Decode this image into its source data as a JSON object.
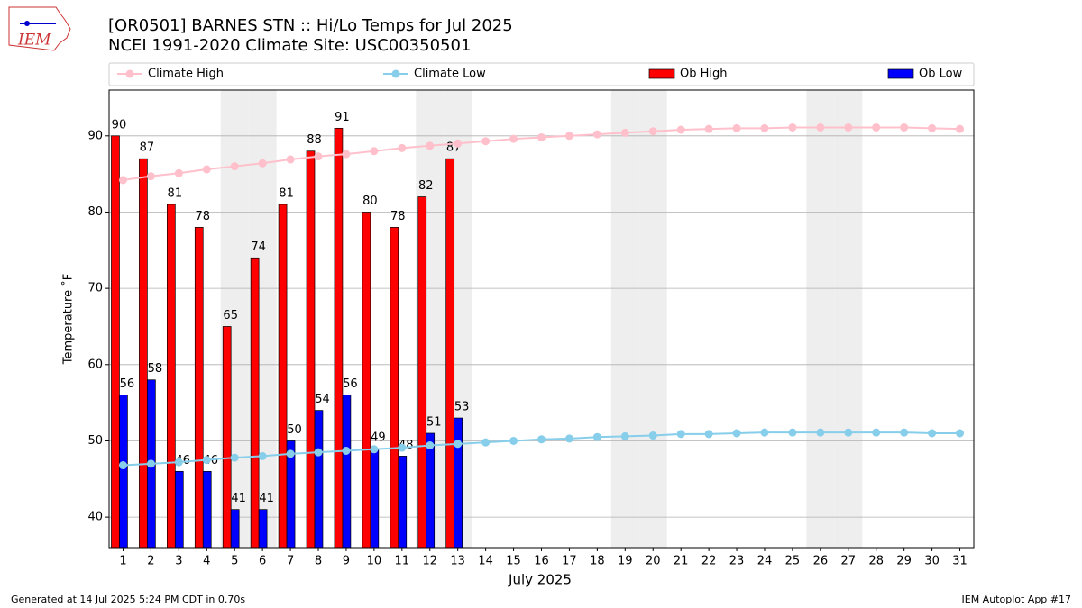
{
  "chart_data": {
    "type": "bar",
    "logo_text": "IEM",
    "title": "[OR0501] BARNES STN :: Hi/Lo Temps for Jul 2025",
    "subtitle": "NCEI 1991-2020 Climate Site: USC00350501",
    "x_label": "July 2025",
    "y_label": "Temperature ˚F",
    "footer_left": "Generated at 14 Jul 2025 5:24 PM CDT in 0.70s",
    "footer_right": "IEM Autoplot App #17",
    "x": [
      1,
      2,
      3,
      4,
      5,
      6,
      7,
      8,
      9,
      10,
      11,
      12,
      13,
      14,
      15,
      16,
      17,
      18,
      19,
      20,
      21,
      22,
      23,
      24,
      25,
      26,
      27,
      28,
      29,
      30,
      31
    ],
    "xlim": [
      0.5,
      31.5
    ],
    "ylim": [
      36,
      96
    ],
    "yticks": [
      40,
      50,
      60,
      70,
      80,
      90
    ],
    "grid": true,
    "shaded_days": [
      5,
      6,
      12,
      13,
      19,
      20,
      26,
      27
    ],
    "legend": "top",
    "series": [
      {
        "name": "Climate High",
        "type": "line",
        "color": "#ffc0cb",
        "values": [
          84.2,
          84.7,
          85.1,
          85.6,
          86.0,
          86.4,
          86.9,
          87.3,
          87.6,
          88.0,
          88.4,
          88.7,
          89.0,
          89.3,
          89.6,
          89.8,
          90.0,
          90.2,
          90.4,
          90.6,
          90.8,
          90.9,
          91.0,
          91.0,
          91.1,
          91.1,
          91.1,
          91.1,
          91.1,
          91.0,
          90.9
        ]
      },
      {
        "name": "Climate Low",
        "type": "line",
        "color": "#87ceeb",
        "values": [
          46.8,
          47.0,
          47.2,
          47.5,
          47.8,
          48.0,
          48.3,
          48.5,
          48.7,
          48.9,
          49.1,
          49.4,
          49.6,
          49.8,
          50.0,
          50.2,
          50.3,
          50.5,
          50.6,
          50.7,
          50.9,
          50.9,
          51.0,
          51.1,
          51.1,
          51.1,
          51.1,
          51.1,
          51.1,
          51.0,
          51.0
        ]
      },
      {
        "name": "Ob High",
        "type": "bar",
        "color": "#ff0000",
        "values": [
          90,
          87,
          81,
          78,
          65,
          74,
          81,
          88,
          91,
          80,
          78,
          82,
          87,
          null,
          null,
          null,
          null,
          null,
          null,
          null,
          null,
          null,
          null,
          null,
          null,
          null,
          null,
          null,
          null,
          null,
          null
        ]
      },
      {
        "name": "Ob Low",
        "type": "bar",
        "color": "#0000ff",
        "values": [
          56,
          58,
          46,
          46,
          41,
          41,
          50,
          54,
          56,
          49,
          48,
          51,
          53,
          null,
          null,
          null,
          null,
          null,
          null,
          null,
          null,
          null,
          null,
          null,
          null,
          null,
          null,
          null,
          null,
          null,
          null
        ]
      }
    ]
  }
}
